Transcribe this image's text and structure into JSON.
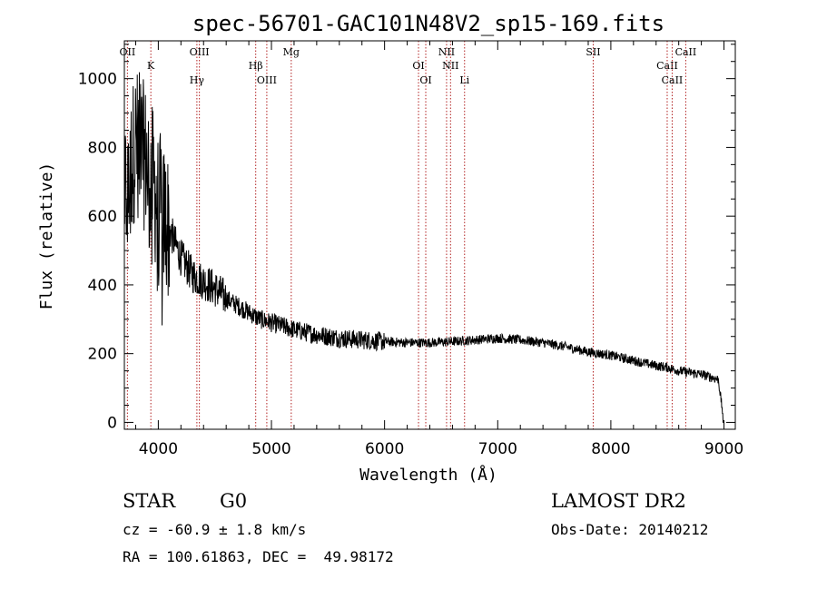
{
  "chart_data": {
    "type": "line",
    "title": "spec-56701-GAC101N48V2_sp15-169.fits",
    "xlabel": "Wavelength (Å)",
    "ylabel": "Flux (relative)",
    "xlim": [
      3700,
      9100
    ],
    "ylim": [
      -20,
      1110
    ],
    "xticks": [
      4000,
      5000,
      6000,
      7000,
      8000,
      9000
    ],
    "yticks": [
      0,
      200,
      400,
      600,
      800,
      1000
    ],
    "grid": false,
    "line_color": "#000000",
    "marker_color": "#b22222",
    "continuum": {
      "x": [
        3700,
        3800,
        3900,
        4000,
        4100,
        4200,
        4300,
        4400,
        4500,
        4600,
        4700,
        4800,
        4900,
        5000,
        5200,
        5400,
        5600,
        5800,
        6000,
        6200,
        6400,
        6600,
        6800,
        7000,
        7200,
        7400,
        7600,
        7800,
        8000,
        8200,
        8400,
        8500,
        8600,
        8800,
        8950,
        9000
      ],
      "y": [
        650,
        820,
        760,
        640,
        560,
        480,
        430,
        410,
        390,
        360,
        340,
        320,
        300,
        290,
        270,
        255,
        245,
        240,
        235,
        232,
        232,
        235,
        240,
        245,
        240,
        232,
        220,
        205,
        195,
        180,
        165,
        160,
        150,
        140,
        125,
        0
      ]
    },
    "lines": [
      {
        "name": "OII",
        "wavelength": 3727
      },
      {
        "name": "K",
        "wavelength": 3934
      },
      {
        "name": "Hγ",
        "wavelength": 4341
      },
      {
        "name": "OIII",
        "wavelength": 4363
      },
      {
        "name": "Hβ",
        "wavelength": 4861
      },
      {
        "name": "OIII",
        "wavelength": 4959
      },
      {
        "name": "Mg",
        "wavelength": 5175
      },
      {
        "name": "OI",
        "wavelength": 6300
      },
      {
        "name": "OI",
        "wavelength": 6364
      },
      {
        "name": "NII",
        "wavelength": 6548
      },
      {
        "name": "NII",
        "wavelength": 6583
      },
      {
        "name": "Li",
        "wavelength": 6707
      },
      {
        "name": "SII",
        "wavelength": 7844
      },
      {
        "name": "CaII",
        "wavelength": 8498
      },
      {
        "name": "CaII",
        "wavelength": 8542
      },
      {
        "name": "CaII",
        "wavelength": 8662
      }
    ]
  },
  "info": {
    "class": "STAR",
    "subclass": "G0",
    "survey": "LAMOST DR2",
    "cz": "cz = -60.9 ± 1.8 km/s",
    "obs_date": "Obs-Date: 20140212",
    "coords": "RA = 100.61863, DEC =  49.98172"
  }
}
